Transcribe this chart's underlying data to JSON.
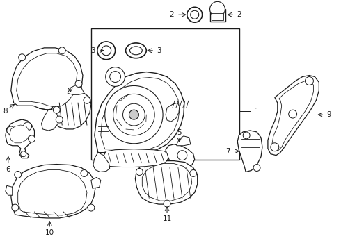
{
  "bg_color": "#ffffff",
  "line_color": "#1a1a1a",
  "figsize": [
    4.9,
    3.6
  ],
  "dpi": 100
}
